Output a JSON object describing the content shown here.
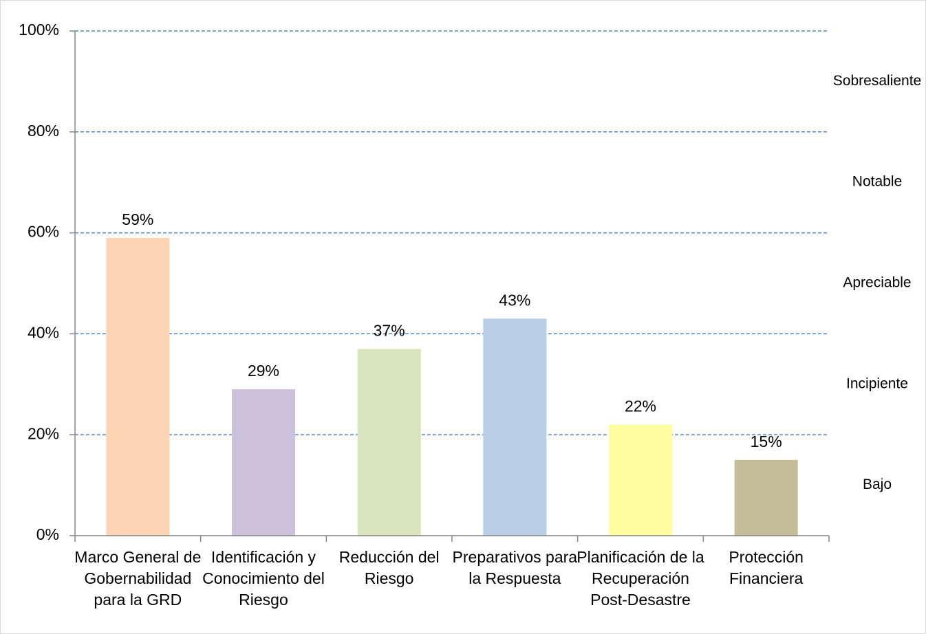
{
  "chart_data": {
    "type": "bar",
    "categories": [
      "Marco General de Gobernabilidad para la GRD",
      "Identificación y Conocimiento del Riesgo",
      "Reducción del Riesgo",
      "Preparativos para la Respuesta",
      "Planificación de la Recuperación Post-Desastre",
      "Protección Financiera"
    ],
    "values": [
      59,
      29,
      37,
      43,
      22,
      15
    ],
    "value_labels": [
      "59%",
      "29%",
      "37%",
      "43%",
      "22%",
      "15%"
    ],
    "colors": [
      "#fcd5b4",
      "#ccc1da",
      "#d7e4bd",
      "#b9cde5",
      "#ffff9f",
      "#c4bd97"
    ],
    "ylim": [
      0,
      100
    ],
    "yticks": [
      {
        "value": 0,
        "label": "0%"
      },
      {
        "value": 20,
        "label": "20%"
      },
      {
        "value": 40,
        "label": "40%"
      },
      {
        "value": 60,
        "label": "60%"
      },
      {
        "value": 80,
        "label": "80%"
      },
      {
        "value": 100,
        "label": "100%"
      }
    ],
    "grid": true,
    "annotations": [
      "Sobresaliente",
      "Notable",
      "Apreciable",
      "Incipiente",
      "Bajo"
    ]
  }
}
